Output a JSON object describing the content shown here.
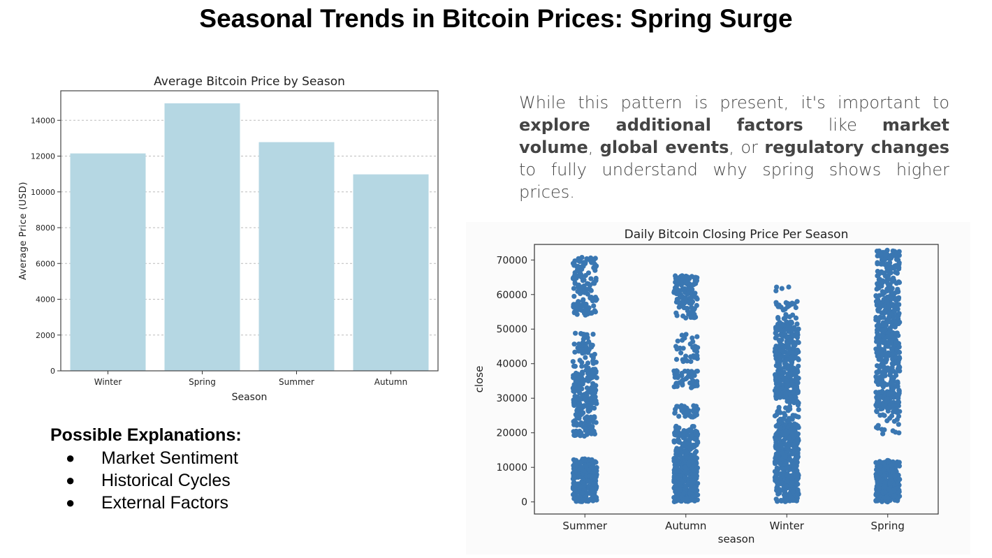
{
  "slide": {
    "title": "Seasonal Trends in Bitcoin Prices: Spring Surge"
  },
  "notes": {
    "parts": [
      {
        "text": "While this pattern is present, it's important to ",
        "bold": false
      },
      {
        "text": "explore additional factors",
        "bold": true
      },
      {
        "text": " like ",
        "bold": false
      },
      {
        "text": "market volume",
        "bold": true
      },
      {
        "text": ", ",
        "bold": false
      },
      {
        "text": "global events",
        "bold": true
      },
      {
        "text": ", or ",
        "bold": false
      },
      {
        "text": "regulatory changes",
        "bold": true
      },
      {
        "text": " to fully understand why spring shows higher prices.",
        "bold": false
      }
    ]
  },
  "explanations": {
    "title": "Possible Explanations:",
    "bullet": "●",
    "items": [
      "Market Sentiment",
      "Historical Cycles",
      "External Factors"
    ]
  },
  "colors": {
    "bar": "#b5d7e3",
    "point": "#3a77b2"
  },
  "chart_data": [
    {
      "type": "bar",
      "title": "Average Bitcoin Price by Season",
      "xlabel": "Season",
      "ylabel": "Average Price (USD)",
      "categories": [
        "Winter",
        "Spring",
        "Summer",
        "Autumn"
      ],
      "values": [
        12150,
        14950,
        12780,
        10980
      ],
      "ylim": [
        0,
        15650
      ],
      "yticks": [
        0,
        2000,
        4000,
        6000,
        8000,
        10000,
        12000,
        14000
      ],
      "grid": "horizontal dashed"
    },
    {
      "type": "scatter",
      "title": "Daily Bitcoin Closing Price Per Season",
      "xlabel": "season",
      "ylabel": "close",
      "categories": [
        "Summer",
        "Autumn",
        "Winter",
        "Spring"
      ],
      "ylim": [
        -3500,
        74500
      ],
      "yticks": [
        0,
        10000,
        20000,
        30000,
        40000,
        50000,
        60000,
        70000
      ],
      "distribution": [
        {
          "season": "Summer",
          "ranges": [
            [
              0,
              12500,
              260
            ],
            [
              19000,
              38000,
              210
            ],
            [
              38000,
              49500,
              55
            ],
            [
              54000,
              71000,
              140
            ]
          ]
        },
        {
          "season": "Autumn",
          "ranges": [
            [
              0,
              12000,
              300
            ],
            [
              12000,
              22000,
              120
            ],
            [
              24500,
              28000,
              40
            ],
            [
              33000,
              38000,
              50
            ],
            [
              40000,
              49000,
              35
            ],
            [
              53000,
              65500,
              130
            ]
          ]
        },
        {
          "season": "Winter",
          "ranges": [
            [
              0,
              12000,
              180
            ],
            [
              12000,
              23000,
              190
            ],
            [
              23000,
              30000,
              40
            ],
            [
              30000,
              52000,
              330
            ],
            [
              52000,
              58000,
              30
            ],
            [
              60000,
              62500,
              4
            ]
          ]
        },
        {
          "season": "Spring",
          "ranges": [
            [
              0,
              12000,
              260
            ],
            [
              19500,
              26000,
              20
            ],
            [
              26000,
              31000,
              80
            ],
            [
              31000,
              51000,
              220
            ],
            [
              51000,
              73000,
              230
            ]
          ]
        }
      ]
    }
  ]
}
